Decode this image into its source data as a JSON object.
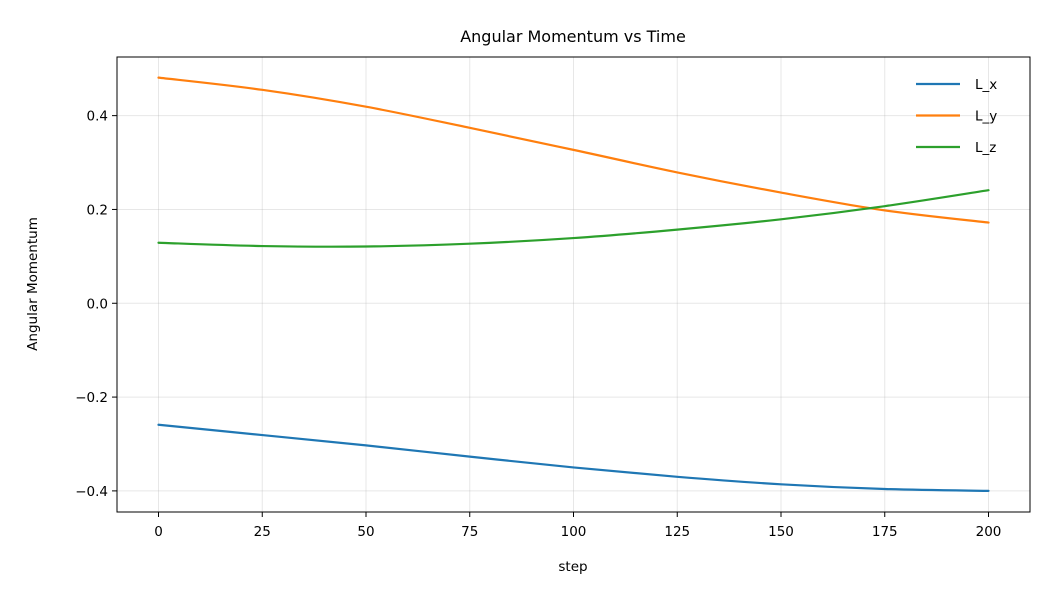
{
  "chart_data": {
    "type": "line",
    "title": "Angular Momentum vs Time",
    "xlabel": "step",
    "ylabel": "Angular Momentum",
    "xlim": [
      -10,
      210
    ],
    "ylim": [
      -0.445,
      0.525
    ],
    "xticks": [
      0,
      25,
      50,
      75,
      100,
      125,
      150,
      175,
      200
    ],
    "xtick_labels": [
      "0",
      "25",
      "50",
      "75",
      "100",
      "125",
      "150",
      "175",
      "200"
    ],
    "yticks": [
      -0.4,
      -0.2,
      0.0,
      0.2,
      0.4
    ],
    "ytick_labels": [
      "−0.4",
      "−0.2",
      "0.0",
      "0.2",
      "0.4"
    ],
    "grid": true,
    "legend_position": "top-right",
    "x": [
      0,
      25,
      50,
      75,
      100,
      125,
      150,
      175,
      200
    ],
    "series": [
      {
        "name": "L_x",
        "color": "#1f77b4",
        "values": [
          -0.259,
          -0.281,
          -0.303,
          -0.327,
          -0.35,
          -0.37,
          -0.386,
          -0.396,
          -0.4
        ]
      },
      {
        "name": "L_y",
        "color": "#ff7f0e",
        "values": [
          0.481,
          0.455,
          0.419,
          0.374,
          0.327,
          0.279,
          0.236,
          0.198,
          0.172
        ]
      },
      {
        "name": "L_z",
        "color": "#2ca02c",
        "values": [
          0.129,
          0.122,
          0.121,
          0.127,
          0.139,
          0.157,
          0.179,
          0.207,
          0.241
        ]
      }
    ]
  }
}
